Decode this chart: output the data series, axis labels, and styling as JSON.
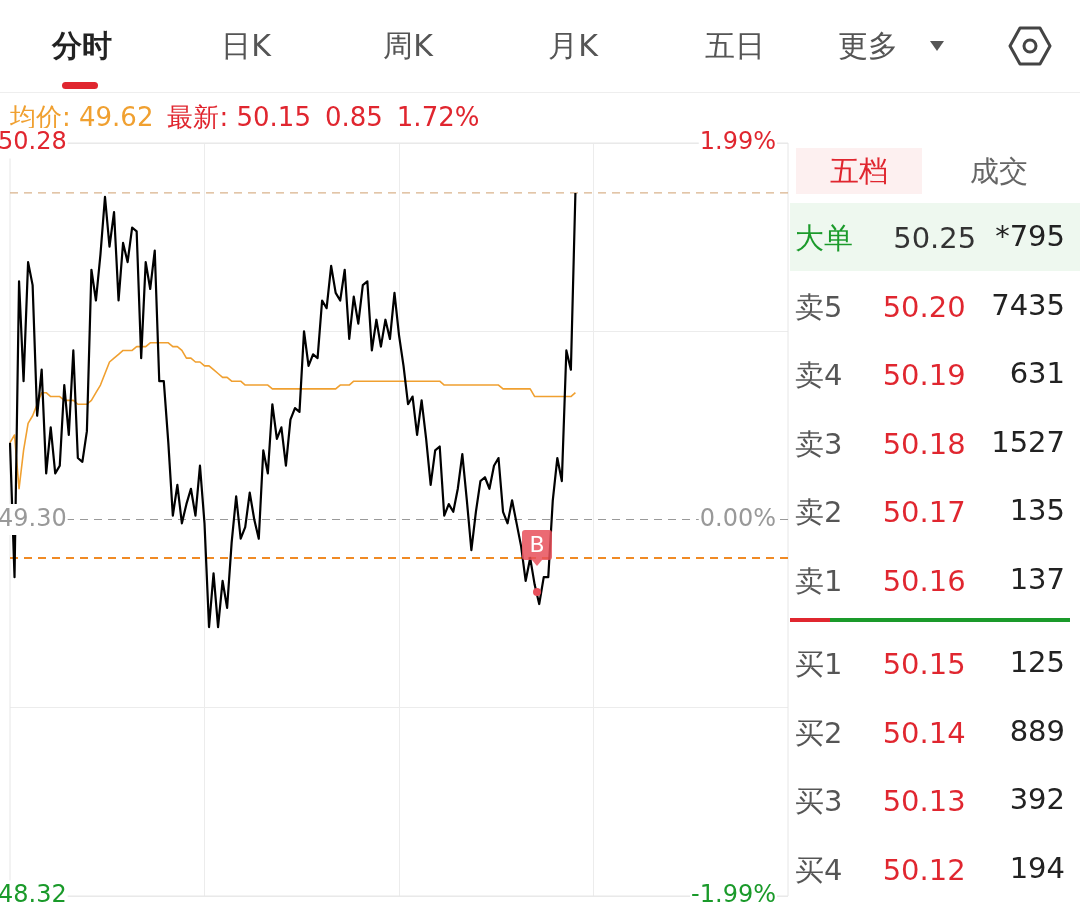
{
  "chart_data": [
    {
      "type": "other",
      "annotations": [
        "分时",
        "日K",
        "周K",
        "月K",
        "五日",
        "更多"
      ]
    },
    {
      "type": "line",
      "annotations": [
        "均价: 49.62",
        "最新: 50.15",
        "0.85",
        "1.72%",
        "B"
      ],
      "categories": [
        null,
        null,
        null,
        null,
        null,
        null,
        null,
        null,
        null,
        null,
        null,
        null,
        null,
        null,
        null,
        null,
        null,
        null,
        null,
        null,
        null,
        null,
        null,
        null,
        null,
        null,
        null,
        null,
        null,
        null,
        null,
        null,
        null,
        null,
        null,
        null,
        null,
        null,
        null,
        null,
        null,
        null,
        null,
        null,
        null,
        null,
        null,
        null,
        null,
        null,
        null,
        null,
        null,
        null,
        null,
        null,
        null,
        null,
        null,
        null,
        null,
        null,
        null,
        null,
        null,
        null,
        null,
        null,
        null,
        null,
        null,
        null,
        null,
        null,
        null,
        null,
        null,
        null,
        null,
        null,
        null,
        null,
        null,
        null,
        null,
        null,
        null,
        null,
        null,
        null,
        null,
        null,
        null,
        null,
        null,
        null,
        null,
        null,
        null,
        null,
        null,
        null,
        null,
        null,
        null,
        null,
        null,
        null,
        null,
        null,
        null,
        null,
        null,
        null,
        null,
        null,
        null,
        null,
        null,
        null,
        null,
        null,
        null,
        null,
        null,
        null,
        null,
        null,
        null,
        null,
        null,
        null,
        null,
        null,
        null,
        null,
        null,
        null,
        null,
        null,
        null,
        null,
        null,
        null,
        null,
        null,
        null,
        null,
        null,
        null,
        null,
        null,
        null,
        null,
        null,
        null,
        null,
        null,
        null,
        null,
        null,
        null,
        null,
        null,
        null,
        null,
        null,
        null,
        null,
        null,
        null,
        null,
        null
      ],
      "ylim": [
        48.32,
        50.28
      ],
      "yticks": [
        48.32,
        {
          "value": 48.81,
          "label": null
        },
        {
          "value": 49.3,
          "label": "49.30"
        },
        {
          "value": 49.79,
          "label": null
        },
        50.28
      ],
      "y2lim": [
        -1.99,
        1.99
      ],
      "y2ticks": [
        {
          "value": -1.99,
          "label": "-1.99%"
        },
        {
          "value": 0,
          "label": "0.00%"
        },
        {
          "value": 1.99,
          "label": "1.99%"
        }
      ],
      "grid": true,
      "marker": "none",
      "line_style": "solid",
      "series": [
        {
          "color": "#000000",
          "values": [
            49.5,
            49.15,
            49.92,
            49.66,
            49.97,
            49.91,
            49.57,
            49.69,
            49.42,
            49.54,
            49.42,
            49.44,
            49.65,
            49.52,
            49.74,
            49.46,
            49.45,
            49.53,
            49.95,
            49.87,
            49.99,
            50.14,
            50.01,
            50.1,
            49.87,
            50.02,
            49.97,
            50.06,
            50.05,
            49.72,
            49.97,
            49.9,
            50.0,
            49.66,
            49.66,
            49.5,
            49.31,
            49.39,
            49.29,
            49.34,
            49.38,
            49.31,
            49.44,
            49.29,
            49.02,
            49.16,
            49.02,
            49.14,
            49.07,
            49.24,
            49.36,
            49.25,
            49.28,
            49.37,
            49.3,
            49.25,
            49.48,
            49.42,
            49.6,
            49.51,
            49.54,
            49.44,
            49.56,
            49.59,
            49.58,
            49.79,
            49.7,
            49.73,
            49.72,
            49.87,
            49.85,
            49.96,
            49.89,
            49.87,
            49.95,
            49.77,
            49.88,
            49.81,
            49.91,
            49.92,
            49.74,
            49.82,
            49.75,
            49.82,
            49.77,
            49.89,
            49.78,
            49.7,
            49.6,
            49.62,
            49.52,
            49.61,
            49.51,
            49.39,
            49.48,
            49.49,
            49.31,
            49.34,
            49.32,
            49.38,
            49.47,
            49.35,
            49.22,
            49.32,
            49.4,
            49.41,
            49.38,
            49.44,
            49.46,
            49.32,
            49.29,
            49.35,
            49.29,
            49.23,
            49.14,
            49.2,
            49.13,
            49.08,
            49.15,
            49.15,
            49.35,
            49.46,
            49.4,
            49.74,
            49.69,
            50.15,
            null,
            null,
            null,
            null,
            null,
            null,
            null,
            null,
            null,
            null,
            null,
            null,
            null,
            null,
            null,
            null,
            null,
            null,
            null,
            null,
            null,
            null,
            null,
            null,
            null,
            null,
            null,
            null,
            null,
            null,
            null,
            null,
            null,
            null,
            null,
            null,
            null,
            null,
            null,
            null,
            null,
            null,
            null,
            null,
            null,
            null,
            null
          ]
        },
        {
          "color": "#f0a030",
          "values": [
            49.5,
            49.52,
            49.38,
            49.48,
            49.55,
            49.57,
            49.6,
            49.63,
            49.63,
            49.62,
            49.62,
            49.62,
            49.61,
            49.61,
            49.61,
            49.6,
            49.6,
            49.6,
            49.61,
            49.63,
            49.65,
            49.68,
            49.71,
            49.72,
            49.73,
            49.74,
            49.74,
            49.74,
            49.75,
            49.75,
            49.75,
            49.76,
            49.76,
            49.76,
            49.76,
            49.76,
            49.75,
            49.75,
            49.74,
            49.72,
            49.72,
            49.71,
            49.71,
            49.7,
            49.7,
            49.69,
            49.68,
            49.67,
            49.67,
            49.66,
            49.66,
            49.66,
            49.65,
            49.65,
            49.65,
            49.65,
            49.65,
            49.65,
            49.64,
            49.64,
            49.64,
            49.64,
            49.64,
            49.64,
            49.64,
            49.64,
            49.64,
            49.64,
            49.64,
            49.64,
            49.64,
            49.64,
            49.64,
            49.65,
            49.65,
            49.65,
            49.66,
            49.66,
            49.66,
            49.66,
            49.66,
            49.66,
            49.66,
            49.66,
            49.66,
            49.66,
            49.66,
            49.66,
            49.66,
            49.66,
            49.66,
            49.66,
            49.66,
            49.66,
            49.66,
            49.66,
            49.65,
            49.65,
            49.65,
            49.65,
            49.65,
            49.65,
            49.65,
            49.65,
            49.65,
            49.65,
            49.65,
            49.65,
            49.65,
            49.64,
            49.64,
            49.64,
            49.64,
            49.64,
            49.64,
            49.64,
            49.62,
            49.62,
            49.62,
            49.62,
            49.62,
            49.62,
            49.62,
            49.62,
            49.62,
            49.63,
            null,
            null,
            null,
            null,
            null,
            null,
            null,
            null,
            null,
            null,
            null,
            null,
            null,
            null,
            null,
            null,
            null,
            null,
            null,
            null,
            null,
            null,
            null,
            null,
            null,
            null,
            null,
            null,
            null,
            null,
            null,
            null,
            null,
            null,
            null,
            null,
            null,
            null,
            null,
            null,
            null,
            null,
            null,
            null,
            null,
            null,
            null
          ]
        }
      ],
      "ref_lines": [
        {
          "axis": "y",
          "value": 50.15,
          "color": "#d9b38c",
          "line_style": "dashed"
        },
        {
          "axis": "y",
          "value": 49.3,
          "color": "#999999",
          "line_style": "dashed"
        },
        {
          "axis": "y",
          "value": 49.2,
          "color": "#f08a24",
          "line_style": "dashed"
        }
      ]
    },
    {
      "type": "other",
      "annotations": [
        "五档",
        "成交",
        "大单 50.25",
        "*795",
        "卖5 50.20",
        "7435",
        "卖4 50.19",
        "631",
        "卖3 50.18",
        "1527",
        "卖2 50.17",
        "135",
        "卖1 50.16",
        "137",
        "买1 50.15",
        "125",
        "买2 50.14",
        "889",
        "买3 50.13",
        "392",
        "买4 50.12",
        "194"
      ]
    }
  ]
}
